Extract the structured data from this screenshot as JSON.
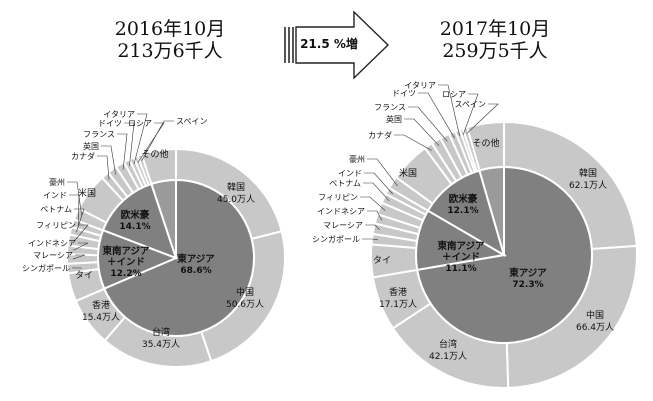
{
  "growth_arrow": {
    "label": "21.5 %増"
  },
  "chart_data": [
    {
      "type": "pie",
      "title_line1": "2016年10月",
      "title_line2": "213万6千人",
      "inner": [
        {
          "label": "東アジア",
          "value": "68.6%",
          "pct": 68.6
        },
        {
          "label": "東南アジア\n＋インド",
          "value": "12.2%",
          "pct": 12.2
        },
        {
          "label": "欧米豪",
          "value": "14.1%",
          "pct": 14.1
        },
        {
          "label": "",
          "value": "",
          "pct": 5.1
        }
      ],
      "outer": [
        {
          "label": "韓国",
          "value": "45.0万人",
          "man": 45.0
        },
        {
          "label": "中国",
          "value": "50.6万人",
          "man": 50.6
        },
        {
          "label": "台湾",
          "value": "35.4万人",
          "man": 35.4
        },
        {
          "label": "香港",
          "value": "15.4万人",
          "man": 15.4
        },
        {
          "label": "タイ",
          "value": "",
          "man": 9.0
        },
        {
          "label": "シンガポール",
          "value": "",
          "man": 3.0
        },
        {
          "label": "マレーシア",
          "value": "",
          "man": 3.0
        },
        {
          "label": "インドネシア",
          "value": "",
          "man": 2.7
        },
        {
          "label": "フィリピン",
          "value": "",
          "man": 3.5
        },
        {
          "label": "ベトナム",
          "value": "",
          "man": 2.4
        },
        {
          "label": "インド",
          "value": "",
          "man": 2.5
        },
        {
          "label": "豪州",
          "value": "",
          "man": 3.7
        },
        {
          "label": "米国",
          "value": "",
          "man": 12.1
        },
        {
          "label": "カナダ",
          "value": "",
          "man": 2.5
        },
        {
          "label": "英国",
          "value": "",
          "man": 3.0
        },
        {
          "label": "フランス",
          "value": "",
          "man": 2.9
        },
        {
          "label": "ドイツ",
          "value": "",
          "man": 1.9
        },
        {
          "label": "イタリア",
          "value": "",
          "man": 1.5
        },
        {
          "label": "ロシア",
          "value": "",
          "man": 1.3
        },
        {
          "label": "スペイン",
          "value": "",
          "man": 1.3
        },
        {
          "label": "その他",
          "value": "",
          "man": 10.9
        }
      ]
    },
    {
      "type": "pie",
      "title_line1": "2017年10月",
      "title_line2": "259万5千人",
      "inner": [
        {
          "label": "東アジア",
          "value": "72.3%",
          "pct": 72.3
        },
        {
          "label": "東南アジア\n＋インド",
          "value": "11.1%",
          "pct": 11.1
        },
        {
          "label": "欧米豪",
          "value": "12.1%",
          "pct": 12.1
        },
        {
          "label": "",
          "value": "",
          "pct": 4.5
        }
      ],
      "outer": [
        {
          "label": "韓国",
          "value": "62.1万人",
          "man": 62.1
        },
        {
          "label": "中国",
          "value": "66.4万人",
          "man": 66.4
        },
        {
          "label": "台湾",
          "value": "42.1万人",
          "man": 42.1
        },
        {
          "label": "香港",
          "value": "17.1万人",
          "man": 17.1
        },
        {
          "label": "タイ",
          "value": "",
          "man": 10.3
        },
        {
          "label": "シンガポール",
          "value": "",
          "man": 3.3
        },
        {
          "label": "マレーシア",
          "value": "",
          "man": 3.3
        },
        {
          "label": "インドネシア",
          "value": "",
          "man": 3.0
        },
        {
          "label": "フィリピン",
          "value": "",
          "man": 3.8
        },
        {
          "label": "ベトナム",
          "value": "",
          "man": 3.0
        },
        {
          "label": "インド",
          "value": "",
          "man": 2.1
        },
        {
          "label": "豪州",
          "value": "",
          "man": 4.0
        },
        {
          "label": "米国",
          "value": "",
          "man": 12.8
        },
        {
          "label": "カナダ",
          "value": "",
          "man": 2.6
        },
        {
          "label": "英国",
          "value": "",
          "man": 3.1
        },
        {
          "label": "フランス",
          "value": "",
          "man": 3.0
        },
        {
          "label": "ドイツ",
          "value": "",
          "man": 2.1
        },
        {
          "label": "イタリア",
          "value": "",
          "man": 1.5
        },
        {
          "label": "ロシア",
          "value": "",
          "man": 1.0
        },
        {
          "label": "スペイン",
          "value": "",
          "man": 1.4
        },
        {
          "label": "その他",
          "value": "",
          "man": 11.6
        }
      ]
    }
  ]
}
